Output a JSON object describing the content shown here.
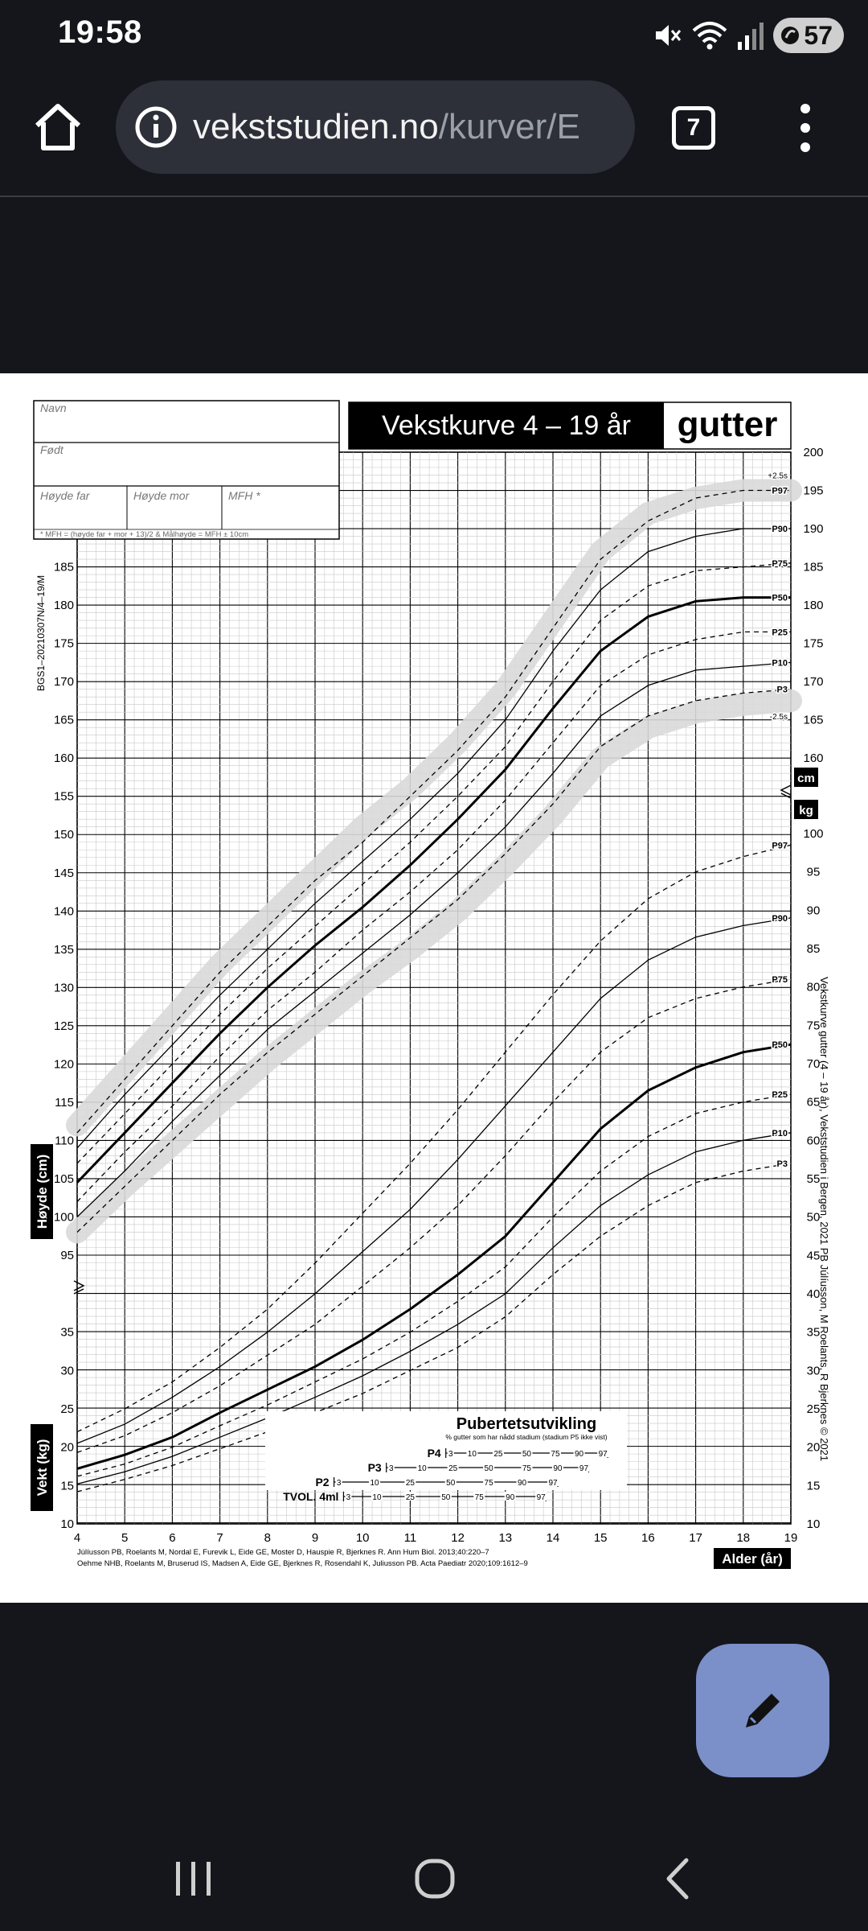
{
  "status": {
    "time": "19:58",
    "battery": "57",
    "icons": [
      "mute-icon",
      "wifi-icon",
      "signal-icon",
      "battery-icon"
    ]
  },
  "browser": {
    "url_host": "vekststudien.no",
    "url_path": "/kurver/E",
    "tab_count": "7",
    "icons": [
      "home-icon",
      "info-icon",
      "tabs-icon",
      "more-vert-icon"
    ]
  },
  "chart": {
    "title": "Vekstkurve 4 – 19 år",
    "gender": "gutter",
    "form": {
      "name_label": "Navn",
      "born_label": "Født",
      "father_label": "Høyde far",
      "mother_label": "Høyde mor",
      "mfh_label": "MFH *",
      "footnote": "* MFH = (høyde far + mor + 13)/2   &   Målhøyde = MFH ± 10cm"
    },
    "side_code": "BGS1–20210307N/4–19/M",
    "right_credit": "Vekstkurve gutter (4 – 19 år), Vekststudien i Bergen, 2021    PB Júlíusson, M Roelants, R Bjerknes © 2021",
    "height_axis_label": "Høyde (cm)",
    "weight_axis_label": "Vekt (kg)",
    "age_axis_label": "Alder (år)",
    "cm_badge": "cm",
    "kg_badge": "kg",
    "references": [
      "Júlíusson PB, Roelants M, Nordal E, Furevik L, Eide GE, Moster D, Hauspie R, Bjerknes R. Ann Hum Biol. 2013;40:220–7",
      "Oehme NHB, Roelants M, Bruserud IS, Madsen A, Eide GE, Bjerknes R, Rosendahl K, Juliusson PB. Acta Paediatr 2020;109:1612–9"
    ],
    "puberty": {
      "title": "Pubertetsutvikling",
      "subtitle": "% gutter som har nådd stadium (stadium P5 ikke vist)",
      "rows": [
        {
          "label": "P4",
          "ticks": [
            "3",
            "10",
            "25",
            "50",
            "75",
            "90",
            "97"
          ],
          "ages": [
            11.85,
            12.3,
            12.85,
            13.45,
            14.05,
            14.55,
            15.05
          ]
        },
        {
          "label": "P3",
          "ticks": [
            "3",
            "10",
            "25",
            "50",
            "75",
            "90",
            "97"
          ],
          "ages": [
            10.6,
            11.25,
            11.9,
            12.65,
            13.45,
            14.1,
            14.65
          ]
        },
        {
          "label": "P2",
          "ticks": [
            "3",
            "10",
            "25",
            "50",
            "75",
            "90",
            "97"
          ],
          "ages": [
            9.5,
            10.25,
            11.0,
            11.85,
            12.65,
            13.35,
            14.0
          ]
        },
        {
          "label": "TVOL. 4ml",
          "ticks": [
            "3",
            "10",
            "25",
            "50",
            "75",
            "90",
            "97"
          ],
          "ages": [
            9.7,
            10.3,
            11.0,
            11.75,
            12.45,
            13.1,
            13.75
          ]
        }
      ]
    }
  },
  "chart_data": {
    "type": "line",
    "x": [
      4,
      5,
      6,
      7,
      8,
      9,
      10,
      11,
      12,
      13,
      14,
      15,
      16,
      17,
      18,
      19
    ],
    "xlim": [
      4,
      19
    ],
    "height_ylim": [
      95,
      200
    ],
    "weight_ylim": [
      10,
      100
    ],
    "x_ticks": [
      "4",
      "5",
      "6",
      "7",
      "8",
      "9",
      "10",
      "11",
      "12",
      "13",
      "14",
      "15",
      "16",
      "17",
      "18",
      "19"
    ],
    "height_series": [
      {
        "name": "+2.5s",
        "values": [
          114,
          121,
          128,
          135,
          141,
          147,
          153,
          158,
          164,
          171,
          180,
          189,
          194,
          196,
          197,
          197
        ]
      },
      {
        "name": "P97",
        "values": [
          111,
          118,
          125,
          132,
          138,
          144,
          149,
          155,
          161,
          168,
          177,
          186,
          191,
          194,
          195,
          195
        ]
      },
      {
        "name": "P90",
        "values": [
          109,
          116,
          122.5,
          129,
          135,
          141,
          146.5,
          152,
          158,
          165,
          174,
          182,
          187,
          189,
          190,
          190
        ]
      },
      {
        "name": "P75",
        "values": [
          107,
          113.5,
          120,
          126.5,
          132.5,
          138,
          143.5,
          149,
          155,
          161.5,
          170,
          178,
          182.5,
          184.5,
          185,
          185.5
        ]
      },
      {
        "name": "P50",
        "values": [
          104.5,
          111,
          117.5,
          124,
          130,
          135.5,
          140.5,
          146,
          152,
          158.5,
          166.5,
          174,
          178.5,
          180.5,
          181,
          181
        ]
      },
      {
        "name": "P25",
        "values": [
          102,
          108.5,
          114.5,
          121,
          127,
          132,
          137.5,
          142.5,
          148,
          154.5,
          162,
          169.5,
          173.5,
          175.5,
          176.5,
          176.5
        ]
      },
      {
        "name": "P10",
        "values": [
          100,
          106,
          112.5,
          118.5,
          124.5,
          129.5,
          134.5,
          139.5,
          145,
          151,
          158,
          165.5,
          169.5,
          171.5,
          172,
          172.5
        ]
      },
      {
        "name": "P3",
        "values": [
          98,
          104,
          110,
          116,
          121.5,
          126.5,
          131.5,
          136.5,
          141.5,
          147.5,
          154,
          161.5,
          165.5,
          167.5,
          168.5,
          169
        ]
      },
      {
        "name": "-2.5s",
        "values": [
          96,
          102,
          107.5,
          113,
          118.5,
          123.5,
          128.5,
          133,
          138,
          144,
          150.5,
          158,
          162,
          164,
          165,
          165.5
        ]
      }
    ],
    "weight_series": [
      {
        "name": "P97",
        "values": [
          22,
          25,
          28.5,
          33,
          38,
          44,
          50.5,
          57,
          64,
          71.5,
          79,
          86,
          91.5,
          95,
          97,
          98.5
        ]
      },
      {
        "name": "P90",
        "values": [
          20.5,
          23,
          26.5,
          30.5,
          35,
          40,
          45.5,
          51,
          57.5,
          64.5,
          71.5,
          78.5,
          83.5,
          86.5,
          88,
          89
        ]
      },
      {
        "name": "P75",
        "values": [
          19.3,
          21.5,
          24.5,
          28,
          32,
          36,
          41,
          46,
          51.5,
          58,
          65,
          71.5,
          76,
          78.5,
          80,
          81
        ]
      },
      {
        "name": "P50",
        "values": [
          17.2,
          19,
          21.3,
          24.5,
          27.5,
          30.5,
          34,
          38,
          42.5,
          47.5,
          54.5,
          61.5,
          66.5,
          69.5,
          71.5,
          72.5
        ]
      },
      {
        "name": "P25",
        "values": [
          16.2,
          17.8,
          20,
          22.8,
          25.5,
          28.5,
          31.5,
          35,
          39,
          43.5,
          50,
          56,
          60.5,
          63.5,
          65,
          66
        ]
      },
      {
        "name": "P10",
        "values": [
          15.2,
          16.8,
          18.8,
          21.3,
          23.8,
          26.5,
          29.3,
          32.5,
          36,
          40,
          46,
          51.5,
          55.5,
          58.5,
          60,
          61
        ]
      },
      {
        "name": "P3",
        "values": [
          14.2,
          15.8,
          17.6,
          19.8,
          22,
          24.5,
          27,
          30,
          33,
          37,
          42.5,
          47.5,
          51.5,
          54.5,
          56,
          57
        ]
      }
    ],
    "height_axis_ticks": [
      "95",
      "100",
      "105",
      "110",
      "115",
      "120",
      "125",
      "130",
      "135",
      "140",
      "145",
      "150",
      "155",
      "160",
      "165",
      "170",
      "175",
      "180",
      "185",
      "190",
      "195",
      "200"
    ],
    "weight_axis_ticks": [
      "10",
      "15",
      "20",
      "25",
      "30",
      "35",
      "40",
      "45",
      "50",
      "55",
      "60",
      "65",
      "70",
      "75",
      "80",
      "85",
      "90",
      "95",
      "100"
    ]
  },
  "fab": {
    "icon": "pencil-icon"
  },
  "navbar": {
    "icons": [
      "recents-icon",
      "home-circle-icon",
      "back-icon"
    ]
  }
}
